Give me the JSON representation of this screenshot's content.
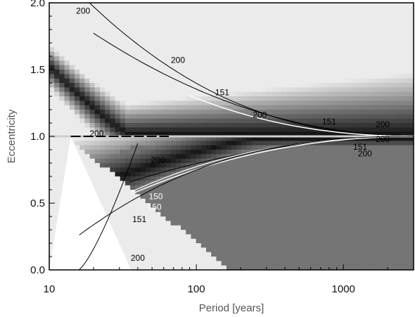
{
  "chart_data": {
    "type": "heatmap",
    "xlabel": "Period [years]",
    "ylabel": "Eccentricity",
    "xscale": "log",
    "xlim": [
      10,
      3000
    ],
    "ylim": [
      0.0,
      2.0
    ],
    "x_ticks": [
      {
        "value": 10,
        "label": "10"
      },
      {
        "value": 100,
        "label": "100"
      },
      {
        "value": 1000,
        "label": "1000"
      }
    ],
    "y_ticks": [
      {
        "value": 0.0,
        "label": "0.0"
      },
      {
        "value": 0.5,
        "label": "0.5"
      },
      {
        "value": 1.0,
        "label": "1.0"
      },
      {
        "value": 1.5,
        "label": "1.5"
      },
      {
        "value": 2.0,
        "label": "2.0"
      }
    ],
    "colormap": "grayscale (dark = high)",
    "contours": [
      {
        "level": "200",
        "color": "#000000",
        "label_text": "200"
      },
      {
        "level": "151",
        "color": "#ffffff",
        "label_text": "151"
      },
      {
        "level": "150",
        "color": "#ffffff",
        "label_text": "150"
      }
    ],
    "contour_labels": [
      {
        "text": "200",
        "x": 17,
        "y": 1.94,
        "color": "#000000"
      },
      {
        "text": "200",
        "x": 75,
        "y": 1.57,
        "color": "#000000"
      },
      {
        "text": "151",
        "x": 150,
        "y": 1.33,
        "color": "#000000"
      },
      {
        "text": "200",
        "x": 270,
        "y": 1.16,
        "color": "#000000"
      },
      {
        "text": "151",
        "x": 800,
        "y": 1.11,
        "color": "#000000"
      },
      {
        "text": "200",
        "x": 1850,
        "y": 1.09,
        "color": "#000000"
      },
      {
        "text": "200",
        "x": 21,
        "y": 1.02,
        "color": "#000000"
      },
      {
        "text": "200",
        "x": 1850,
        "y": 0.98,
        "color": "#000000"
      },
      {
        "text": "151",
        "x": 1300,
        "y": 0.92,
        "color": "#000000"
      },
      {
        "text": "200",
        "x": 1400,
        "y": 0.87,
        "color": "#000000"
      },
      {
        "text": "200",
        "x": 55,
        "y": 0.82,
        "color": "#000000"
      },
      {
        "text": "150",
        "x": 53,
        "y": 0.55,
        "color": "#ffffff"
      },
      {
        "text": "150",
        "x": 52,
        "y": 0.47,
        "color": "#ffffff"
      },
      {
        "text": "151",
        "x": 41,
        "y": 0.38,
        "color": "#000000"
      },
      {
        "text": "200",
        "x": 40,
        "y": 0.09,
        "color": "#000000"
      }
    ]
  }
}
